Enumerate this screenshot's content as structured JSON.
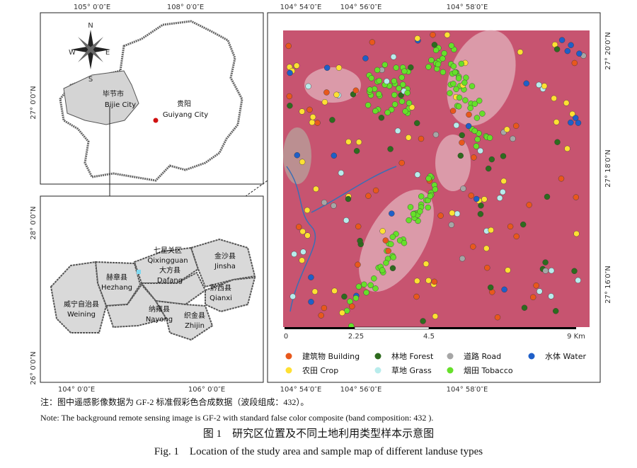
{
  "top_map": {
    "x_labels": [
      "105° 0′0″E",
      "108° 0′0″E"
    ],
    "y_labels": [
      "27° 0′0″N"
    ],
    "compass": [
      "N",
      "S",
      "E",
      "W"
    ],
    "places": [
      {
        "name": "毕节市",
        "name_en": "Bijie City"
      },
      {
        "name": "贵阳",
        "name_en": "Guiyang City"
      }
    ]
  },
  "bottom_map": {
    "x_labels": [
      "104° 0′0″E",
      "106° 0′0″E"
    ],
    "y_labels": [
      "28° 0′0″N",
      "26° 0′0″N"
    ],
    "counties": [
      {
        "name": "七星关区",
        "name_en": "Qixingguan"
      },
      {
        "name": "赫章县",
        "name_en": "Hezhang"
      },
      {
        "name": "大方县",
        "name_en": "Dafang"
      },
      {
        "name": "金沙县",
        "name_en": "Jinsha"
      },
      {
        "name": "黔西县",
        "name_en": "Qianxi"
      },
      {
        "name": "威宁自治县",
        "name_en": "Weining"
      },
      {
        "name": "纳雍县",
        "name_en": "Nayong"
      },
      {
        "name": "织金县",
        "name_en": "Zhijin"
      }
    ]
  },
  "study_map": {
    "top_labels": [
      "104° 54′0″E",
      "104° 56′0″E",
      "104° 58′0″E"
    ],
    "bottom_labels": [
      "104° 54′0″E",
      "104° 56′0″E",
      "104° 58′0″E"
    ],
    "right_labels": [
      "27° 20′0″N",
      "27° 18′0″N",
      "27° 16′0″N"
    ],
    "scale_labels": [
      "0",
      "2.25",
      "4.5",
      "9 Km"
    ],
    "legend": [
      {
        "label": "建筑物 Building",
        "color": "#e8581c"
      },
      {
        "label": "林地 Forest",
        "color": "#2e6b1e"
      },
      {
        "label": "道路 Road",
        "color": "#a6a6a6"
      },
      {
        "label": "水体 Water",
        "color": "#1f5fc8"
      },
      {
        "label": "农田 Crop",
        "color": "#ffe033"
      },
      {
        "label": "草地 Grass",
        "color": "#b8ecec"
      },
      {
        "label": "烟田 Tobacco",
        "color": "#66e02a"
      }
    ]
  },
  "notes": [
    "注：图中遥感影像数据为 GF-2 标准假彩色合成数据（波段组成：432）。",
    "Note: The background remote sensing image is GF-2 with standard false color composite (band composition: 432 )."
  ],
  "caption": {
    "zh": "图 1　研究区位置及不同土地利用类型样本示意图",
    "en": "Fig. 1　Location of the study area and sample map of different landuse types"
  }
}
